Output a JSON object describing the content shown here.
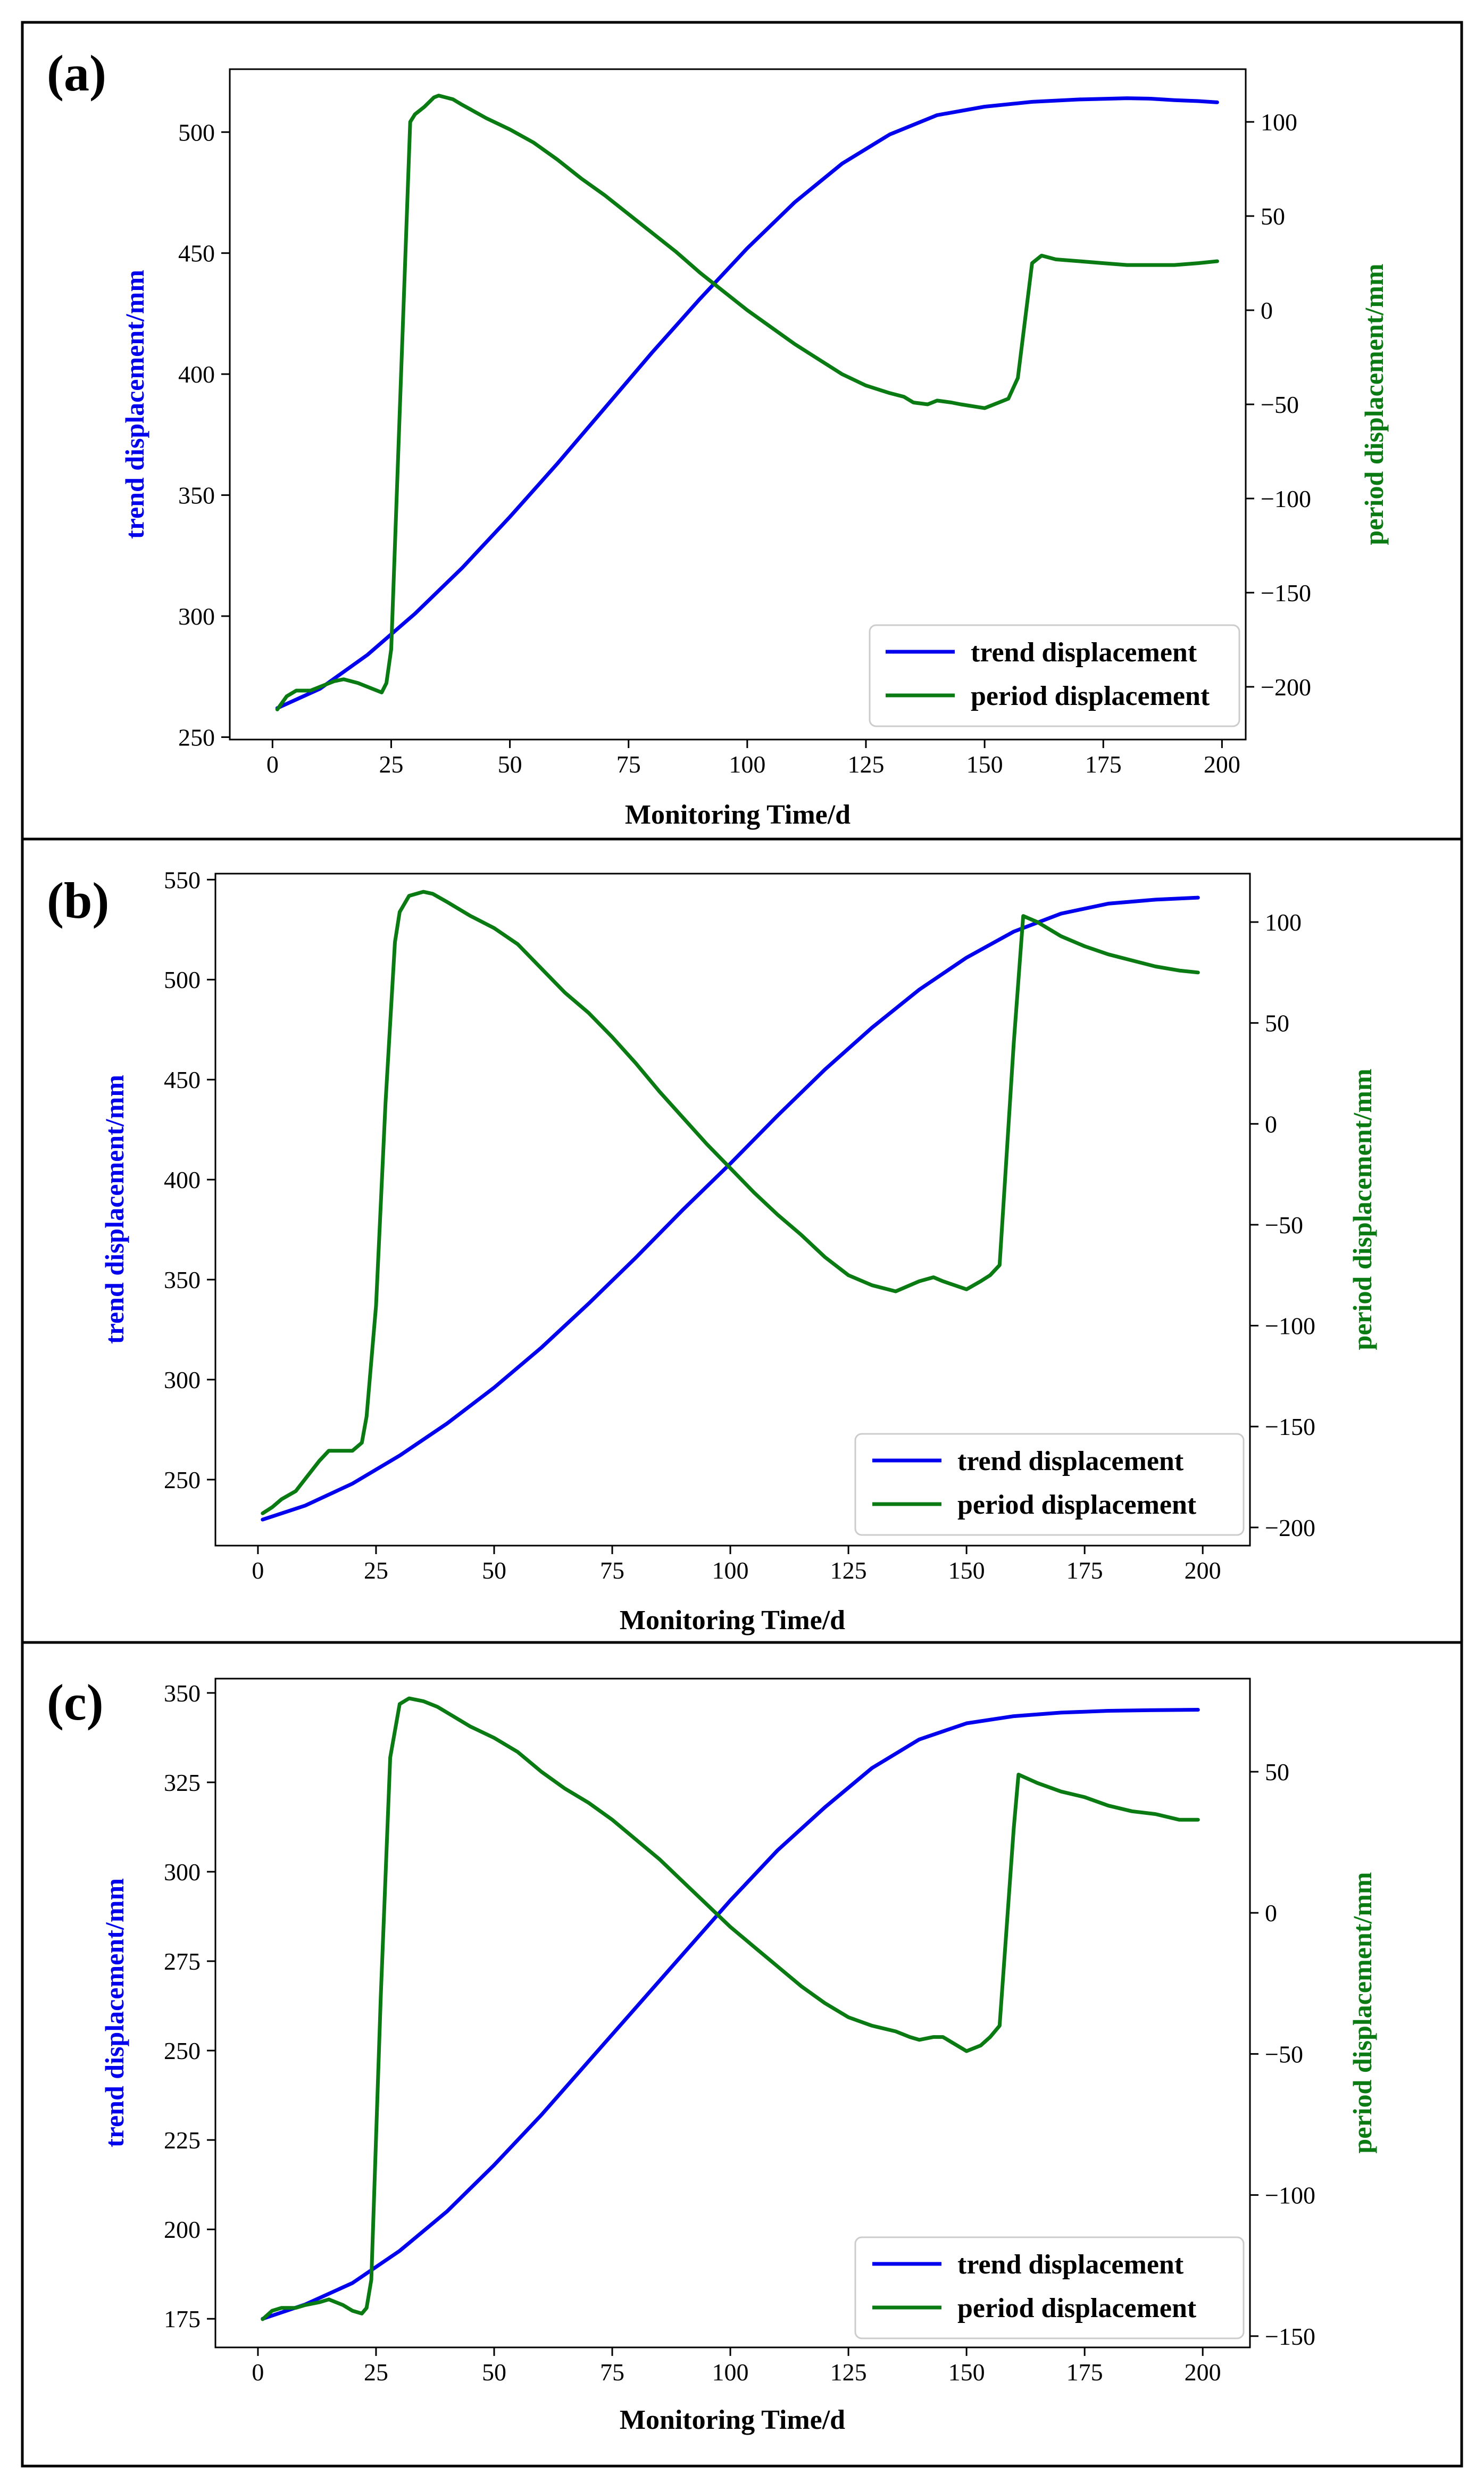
{
  "colors": {
    "trend": "#0000ee",
    "period": "#0a7a12",
    "axis": "#000000",
    "background": "#ffffff"
  },
  "chart_data": [
    {
      "type": "line",
      "panel_label": "(a)",
      "xlabel": "Monitoring Time/d",
      "ylabel_left": "trend displacement/mm",
      "ylabel_right": "period displacement/mm",
      "xlim": [
        -9,
        205
      ],
      "x_ticks": [
        0,
        25,
        50,
        75,
        100,
        125,
        150,
        175,
        200
      ],
      "ylim_left": [
        249,
        526
      ],
      "yticks_left": [
        250,
        300,
        350,
        400,
        450,
        500
      ],
      "ylim_right": [
        -228,
        128
      ],
      "yticks_right": [
        -200,
        -150,
        -100,
        -50,
        0,
        50,
        100
      ],
      "legend": [
        "trend displacement",
        "period displacement"
      ],
      "legend_position": "lower-right",
      "series": [
        {
          "name": "trend displacement",
          "axis": "left",
          "x": [
            1,
            10,
            20,
            30,
            40,
            50,
            60,
            70,
            80,
            90,
            100,
            110,
            120,
            130,
            140,
            150,
            160,
            170,
            180,
            185,
            190,
            195,
            199
          ],
          "values": [
            262,
            270,
            284,
            301,
            320,
            341,
            363,
            386,
            409,
            431,
            452,
            471,
            487,
            499,
            507,
            510.5,
            512.5,
            513.5,
            514,
            513.8,
            513.2,
            512.8,
            512.3
          ]
        },
        {
          "name": "period displacement",
          "axis": "right",
          "x": [
            1,
            3,
            5,
            8,
            10,
            13,
            15,
            18,
            20,
            23,
            24,
            25,
            27,
            29,
            30,
            32,
            34,
            35,
            38,
            40,
            45,
            50,
            55,
            60,
            65,
            70,
            75,
            80,
            85,
            90,
            95,
            100,
            105,
            110,
            115,
            120,
            125,
            130,
            133,
            135,
            138,
            140,
            143,
            145,
            150,
            153,
            155,
            157,
            160,
            162,
            165,
            170,
            175,
            180,
            185,
            190,
            195,
            199
          ],
          "values": [
            -212,
            -205,
            -202,
            -202,
            -200,
            -197,
            -196,
            -198,
            -200,
            -203,
            -198,
            -180,
            -40,
            100,
            104,
            108,
            113,
            114,
            112,
            109,
            102,
            96,
            89,
            80,
            70,
            61,
            51,
            41,
            31,
            20,
            10,
            0,
            -9,
            -18,
            -26,
            -34,
            -40,
            -44,
            -46,
            -49,
            -50,
            -48,
            -49,
            -50,
            -52,
            -49,
            -47,
            -36,
            25,
            29,
            27,
            26,
            25,
            24,
            24,
            24,
            25,
            26
          ]
        }
      ]
    },
    {
      "type": "line",
      "panel_label": "(b)",
      "xlabel": "Monitoring Time/d",
      "ylabel_left": "trend displacement/mm",
      "ylabel_right": "period displacement/mm",
      "xlim": [
        -9,
        210
      ],
      "x_ticks": [
        0,
        25,
        50,
        75,
        100,
        125,
        150,
        175,
        200
      ],
      "ylim_left": [
        217,
        553
      ],
      "yticks_left": [
        250,
        300,
        350,
        400,
        450,
        500,
        550
      ],
      "ylim_right": [
        -209,
        124
      ],
      "yticks_right": [
        -200,
        -150,
        -100,
        -50,
        0,
        50,
        100
      ],
      "legend": [
        "trend displacement",
        "period displacement"
      ],
      "legend_position": "lower-right",
      "series": [
        {
          "name": "trend displacement",
          "axis": "left",
          "x": [
            1,
            10,
            20,
            30,
            40,
            50,
            60,
            70,
            80,
            90,
            100,
            110,
            120,
            130,
            140,
            150,
            160,
            170,
            180,
            190,
            199
          ],
          "values": [
            230,
            237,
            248,
            262,
            278,
            296,
            316,
            338,
            361,
            385,
            408,
            432,
            455,
            476,
            495,
            511,
            524,
            533,
            538,
            540,
            541
          ]
        },
        {
          "name": "period displacement",
          "axis": "right",
          "x": [
            1,
            3,
            5,
            8,
            10,
            13,
            15,
            18,
            20,
            22,
            23,
            25,
            27,
            29,
            30,
            32,
            35,
            37,
            40,
            45,
            50,
            55,
            60,
            65,
            70,
            75,
            80,
            85,
            90,
            95,
            100,
            105,
            110,
            115,
            120,
            125,
            130,
            135,
            140,
            143,
            145,
            150,
            153,
            155,
            157,
            160,
            162,
            165,
            170,
            175,
            180,
            185,
            190,
            195,
            199
          ],
          "values": [
            -193,
            -190,
            -186,
            -182,
            -176,
            -167,
            -162,
            -162,
            -162,
            -158,
            -145,
            -90,
            10,
            90,
            105,
            113,
            115,
            114,
            110,
            103,
            97,
            89,
            77,
            65,
            55,
            43,
            30,
            16,
            3,
            -10,
            -22,
            -34,
            -45,
            -55,
            -66,
            -75,
            -80,
            -83,
            -78,
            -76,
            -78,
            -82,
            -78,
            -75,
            -70,
            40,
            103,
            100,
            93,
            88,
            84,
            81,
            78,
            76,
            75
          ]
        }
      ]
    },
    {
      "type": "line",
      "panel_label": "(c)",
      "xlabel": "Monitoring Time/d",
      "ylabel_left": "trend displacement/mm",
      "ylabel_right": "period displacement/mm",
      "xlim": [
        -9,
        210
      ],
      "x_ticks": [
        0,
        25,
        50,
        75,
        100,
        125,
        150,
        175,
        200
      ],
      "ylim_left": [
        167,
        354
      ],
      "yticks_left": [
        175,
        200,
        225,
        250,
        275,
        300,
        325,
        350
      ],
      "ylim_right": [
        -154,
        83
      ],
      "yticks_right": [
        -150,
        -100,
        -50,
        0,
        50
      ],
      "legend": [
        "trend displacement",
        "period displacement"
      ],
      "legend_position": "lower-right",
      "series": [
        {
          "name": "trend displacement",
          "axis": "left",
          "x": [
            1,
            10,
            20,
            30,
            40,
            50,
            60,
            70,
            80,
            90,
            100,
            110,
            120,
            130,
            140,
            150,
            160,
            170,
            180,
            190,
            199
          ],
          "values": [
            175,
            179,
            185,
            194,
            205,
            218,
            232,
            247,
            262,
            277,
            292,
            306,
            318,
            329,
            337,
            341.5,
            343.5,
            344.5,
            345,
            345.2,
            345.3
          ]
        },
        {
          "name": "period displacement",
          "axis": "right",
          "x": [
            1,
            3,
            5,
            8,
            10,
            13,
            15,
            18,
            20,
            22,
            23,
            24,
            26,
            28,
            30,
            32,
            35,
            38,
            40,
            45,
            50,
            55,
            60,
            65,
            70,
            75,
            80,
            85,
            90,
            95,
            100,
            105,
            110,
            115,
            120,
            125,
            130,
            135,
            138,
            140,
            143,
            145,
            150,
            153,
            155,
            157,
            160,
            161,
            165,
            170,
            175,
            180,
            185,
            190,
            195,
            199
          ],
          "values": [
            -144,
            -141,
            -140,
            -140,
            -139,
            -138,
            -137,
            -139,
            -141,
            -142,
            -140,
            -130,
            -30,
            55,
            74,
            76,
            75,
            73,
            71,
            66,
            62,
            57,
            50,
            44,
            39,
            33,
            26,
            19,
            11,
            3,
            -5,
            -12,
            -19,
            -26,
            -32,
            -37,
            -40,
            -42,
            -44,
            -45,
            -44,
            -44,
            -49,
            -47,
            -44,
            -40,
            30,
            49,
            46,
            43,
            41,
            38,
            36,
            35,
            33,
            33
          ]
        }
      ]
    }
  ]
}
